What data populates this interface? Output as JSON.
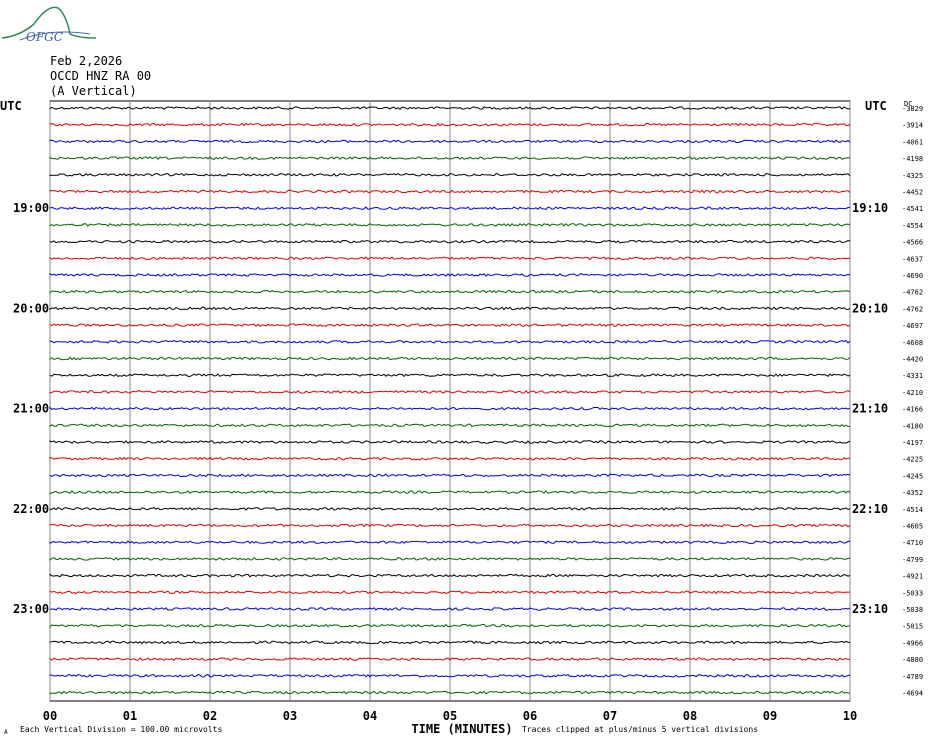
{
  "header": {
    "date": "Feb 2,2026",
    "station": "OCCD HNZ RA 00",
    "component": "(A Vertical)"
  },
  "logo_text": "OFGC",
  "chart_data": {
    "type": "line",
    "title": "OCCD HNZ RA 00",
    "left_axis_label": "UTC",
    "right_axis_label": "UTC",
    "dc_label": "DC",
    "xlabel": "TIME (MINUTES)",
    "x_ticks": [
      "00",
      "01",
      "02",
      "03",
      "04",
      "05",
      "06",
      "07",
      "08",
      "09",
      "10"
    ],
    "xlim": [
      0,
      10
    ],
    "left_time_labels": [
      {
        "row": 6,
        "label": "19:00"
      },
      {
        "row": 12,
        "label": "20:00"
      },
      {
        "row": 18,
        "label": "21:00"
      },
      {
        "row": 24,
        "label": "22:00"
      },
      {
        "row": 30,
        "label": "23:00"
      }
    ],
    "right_time_labels": [
      {
        "row": 6,
        "label": "19:10"
      },
      {
        "row": 12,
        "label": "20:10"
      },
      {
        "row": 18,
        "label": "21:10"
      },
      {
        "row": 24,
        "label": "22:10"
      },
      {
        "row": 30,
        "label": "23:10"
      }
    ],
    "trace_colors": [
      "#000000",
      "#e00000",
      "#0000e0",
      "#006400"
    ],
    "dc_offsets": [
      -3829,
      -3914,
      -4061,
      -4198,
      -4325,
      -4452,
      -4541,
      -4554,
      -4566,
      -4637,
      -4690,
      -4762,
      -4762,
      -4697,
      -4608,
      -4420,
      -4331,
      -4210,
      -4166,
      -4180,
      -4197,
      -4225,
      -4245,
      -4352,
      -4514,
      -4605,
      -4710,
      -4799,
      -4921,
      -5033,
      -5038,
      -5015,
      -4966,
      -4880,
      -4789,
      -4694
    ],
    "grid": true
  },
  "footer": {
    "scale_note": "Each Vertical Division =  100.00 microvolts",
    "clip_note": "Traces clipped at plus/minus 5 vertical divisions",
    "corner_mark": "A"
  }
}
